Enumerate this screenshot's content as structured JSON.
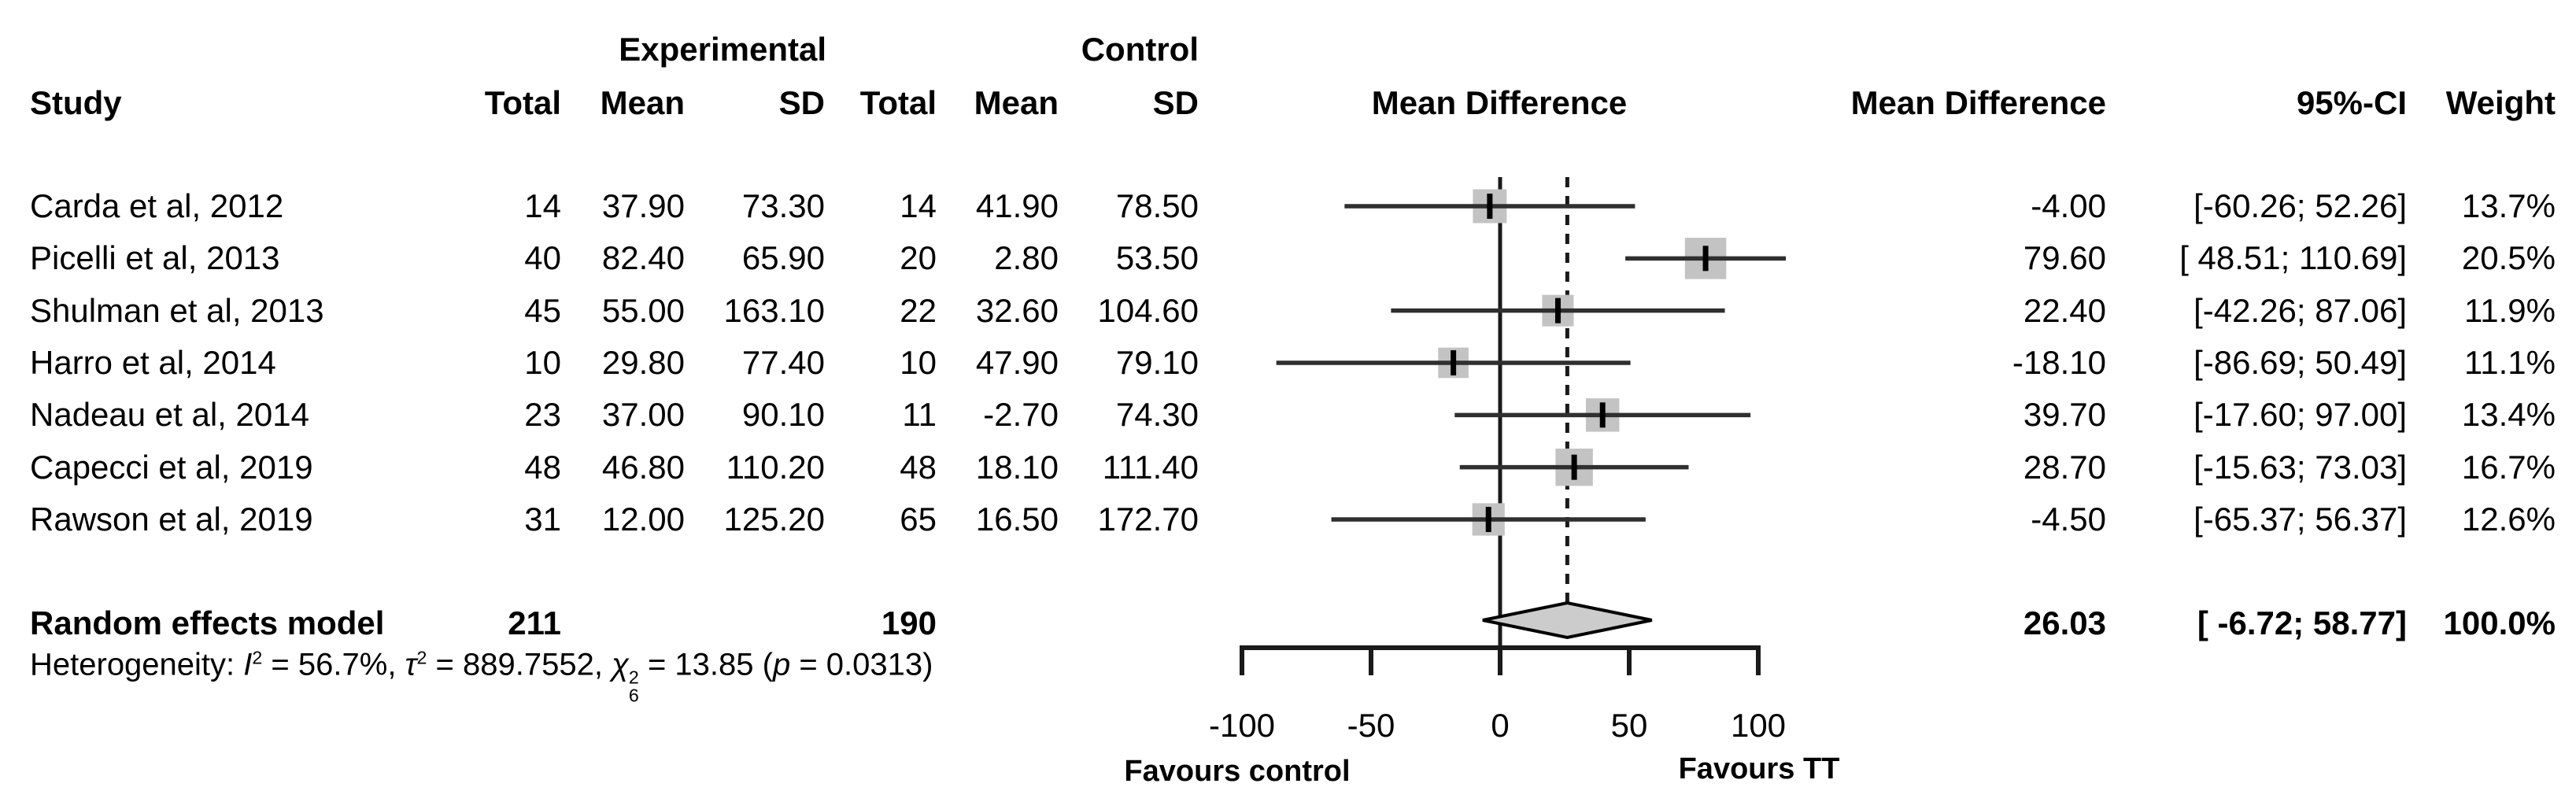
{
  "figure": {
    "columns": {
      "group_experimental": "Experimental",
      "group_control": "Control",
      "study": "Study",
      "total_exp": "Total",
      "mean_exp": "Mean",
      "sd_exp": "SD",
      "total_ctrl": "Total",
      "mean_ctrl": "Mean",
      "sd_ctrl": "SD",
      "md_plot": "Mean Difference",
      "md": "Mean Difference",
      "ci": "95%-CI",
      "weight": "Weight"
    },
    "summary": {
      "label": "Random effects model",
      "exp_total": "211",
      "ctrl_total": "190",
      "md": "26.03",
      "ci": "[ -6.72; 58.77]",
      "weight": "100.0%"
    },
    "heterogeneity": {
      "prefix": "Heterogeneity: ",
      "i_sym": "I",
      "sup_two": "2",
      "after_i": " = 56.7%, ",
      "tau_sym": "τ",
      "after_tau": " = 889.7552, ",
      "chi_sym": "χ",
      "chi_df": "6",
      "after_chi": " = 13.85 (",
      "p_sym": "p",
      "after_p": " = 0.0313)"
    },
    "axis": {
      "favours_left": "Favours control",
      "favours_right": "Favours TT"
    },
    "colors": {
      "square": "#c3c3c3",
      "diamond_fill": "#cccccc",
      "diamond_border": "#000000",
      "ci_line": "#2f2f2f",
      "axis_line": "#1a1a1a",
      "text": "#000000"
    }
  },
  "chart_data": {
    "type": "forest",
    "effect_measure": "Mean Difference",
    "model": "Random effects model",
    "xlim": [
      -100,
      100
    ],
    "x_ticks": [
      -100,
      -50,
      0,
      50,
      100
    ],
    "zero_line": 0,
    "pooled_dashed_line": 26.03,
    "favours": {
      "left": "Favours control",
      "right": "Favours TT"
    },
    "studies": [
      {
        "study": "Carda et al, 2012",
        "exp_total": 14,
        "exp_mean": 37.9,
        "exp_sd": 73.3,
        "ctrl_total": 14,
        "ctrl_mean": 41.9,
        "ctrl_sd": 78.5,
        "md": -4.0,
        "ci_low": -60.26,
        "ci_high": 52.26,
        "weight_pct": 13.7,
        "ci_text": "[-60.26; 52.26]"
      },
      {
        "study": "Picelli et al, 2013",
        "exp_total": 40,
        "exp_mean": 82.4,
        "exp_sd": 65.9,
        "ctrl_total": 20,
        "ctrl_mean": 2.8,
        "ctrl_sd": 53.5,
        "md": 79.6,
        "ci_low": 48.51,
        "ci_high": 110.69,
        "weight_pct": 20.5,
        "ci_text": "[ 48.51; 110.69]"
      },
      {
        "study": "Shulman et al, 2013",
        "exp_total": 45,
        "exp_mean": 55.0,
        "exp_sd": 163.1,
        "ctrl_total": 22,
        "ctrl_mean": 32.6,
        "ctrl_sd": 104.6,
        "md": 22.4,
        "ci_low": -42.26,
        "ci_high": 87.06,
        "weight_pct": 11.9,
        "ci_text": "[-42.26; 87.06]"
      },
      {
        "study": "Harro et al, 2014",
        "exp_total": 10,
        "exp_mean": 29.8,
        "exp_sd": 77.4,
        "ctrl_total": 10,
        "ctrl_mean": 47.9,
        "ctrl_sd": 79.1,
        "md": -18.1,
        "ci_low": -86.69,
        "ci_high": 50.49,
        "weight_pct": 11.1,
        "ci_text": "[-86.69; 50.49]"
      },
      {
        "study": "Nadeau et al, 2014",
        "exp_total": 23,
        "exp_mean": 37.0,
        "exp_sd": 90.1,
        "ctrl_total": 11,
        "ctrl_mean": -2.7,
        "ctrl_sd": 74.3,
        "md": 39.7,
        "ci_low": -17.6,
        "ci_high": 97.0,
        "weight_pct": 13.4,
        "ci_text": "[-17.60; 97.00]"
      },
      {
        "study": "Capecci et al, 2019",
        "exp_total": 48,
        "exp_mean": 46.8,
        "exp_sd": 110.2,
        "ctrl_total": 48,
        "ctrl_mean": 18.1,
        "ctrl_sd": 111.4,
        "md": 28.7,
        "ci_low": -15.63,
        "ci_high": 73.03,
        "weight_pct": 16.7,
        "ci_text": "[-15.63; 73.03]"
      },
      {
        "study": "Rawson et al, 2019",
        "exp_total": 31,
        "exp_mean": 12.0,
        "exp_sd": 125.2,
        "ctrl_total": 65,
        "ctrl_mean": 16.5,
        "ctrl_sd": 172.7,
        "md": -4.5,
        "ci_low": -65.37,
        "ci_high": 56.37,
        "weight_pct": 12.6,
        "ci_text": "[-65.37; 56.37]"
      }
    ],
    "summary": {
      "exp_total": 211,
      "ctrl_total": 190,
      "md": 26.03,
      "ci_low": -6.72,
      "ci_high": 58.77,
      "weight_pct": 100.0
    },
    "heterogeneity": {
      "I2_pct": 56.7,
      "tau2": 889.7552,
      "chi2": 13.85,
      "df": 6,
      "p": 0.0313
    }
  }
}
